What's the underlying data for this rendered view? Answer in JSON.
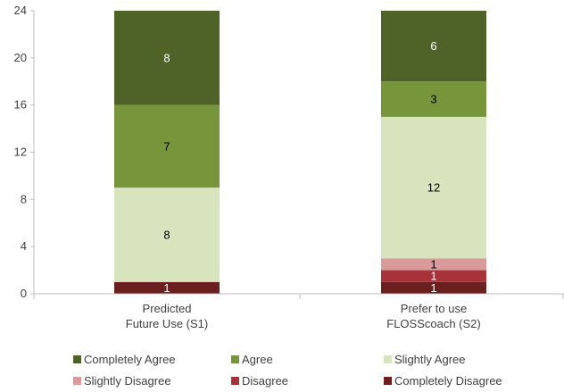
{
  "chart_data": {
    "type": "bar",
    "stacked": true,
    "categories": [
      [
        "Predicted",
        "Future Use (S1)"
      ],
      [
        "Prefer to use",
        "FLOSScoach (S2)"
      ]
    ],
    "ylim": [
      0,
      24
    ],
    "yticks": [
      0,
      4,
      8,
      12,
      16,
      20,
      24
    ],
    "grid": false,
    "legend_position": "bottom",
    "series": [
      {
        "name": "Completely Disagree",
        "color": "#6b1f1f",
        "label_color": "#ffffff",
        "values": [
          1,
          1
        ]
      },
      {
        "name": "Disagree",
        "color": "#a8323a",
        "label_color": "#ffffff",
        "values": [
          0,
          1
        ]
      },
      {
        "name": "Slightly Disagree",
        "color": "#d99a9c",
        "label_color": "#000000",
        "values": [
          0,
          1
        ]
      },
      {
        "name": "Slightly Agree",
        "color": "#d7e4bd",
        "label_color": "#000000",
        "values": [
          8,
          12
        ]
      },
      {
        "name": "Agree",
        "color": "#77963c",
        "label_color": "#000000",
        "values": [
          7,
          3
        ]
      },
      {
        "name": "Completely Agree",
        "color": "#4f6228",
        "label_color": "#ffffff",
        "values": [
          8,
          6
        ]
      }
    ],
    "legend_order": [
      "Completely Agree",
      "Agree",
      "Slightly Agree",
      "Slightly Disagree",
      "Disagree",
      "Completely Disagree"
    ]
  }
}
